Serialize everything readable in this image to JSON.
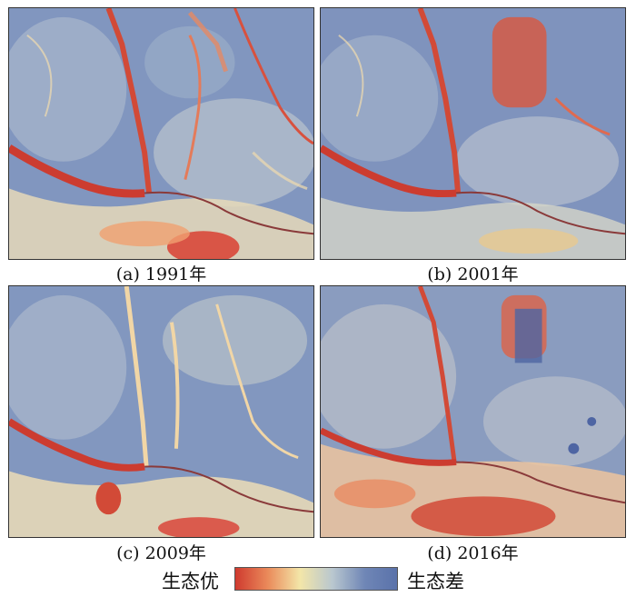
{
  "panels": [
    {
      "caption": "(a) 1991年",
      "year": 1991
    },
    {
      "caption": "(b) 2001年",
      "year": 2001
    },
    {
      "caption": "(c) 2009年",
      "year": 2009
    },
    {
      "caption": "(d) 2016年",
      "year": 2016
    }
  ],
  "legend": {
    "left_label": "生态优",
    "right_label": "生态差",
    "colors": [
      "#cf3a2f",
      "#ea8a5a",
      "#f3e6a8",
      "#b9c7cf",
      "#6f86b6",
      "#5a72aa"
    ]
  },
  "palette": {
    "base_blue": "#7f93bd",
    "light_blue": "#b4c0d2",
    "pale": "#e9e3c7",
    "orange": "#f0a36c",
    "red": "#d24a37",
    "dark_red": "#b32e26"
  }
}
